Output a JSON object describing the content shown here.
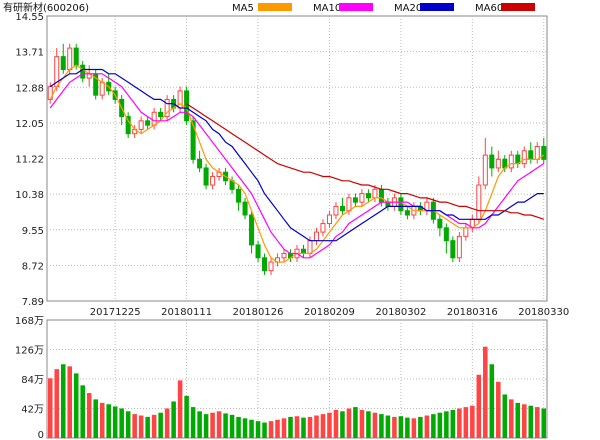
{
  "header": {
    "title": "有研新材(600206)",
    "legend": [
      {
        "name": "MA5",
        "color": "#ff9900"
      },
      {
        "name": "MA10",
        "color": "#ff00ff"
      },
      {
        "name": "MA20",
        "color": "#0000cc"
      },
      {
        "name": "MA60",
        "color": "#cc0000"
      }
    ]
  },
  "chart_data": [
    {
      "type": "candlestick",
      "title": "有研新材(600206)",
      "ylim": [
        7.89,
        14.55
      ],
      "yticks": [
        "14.55",
        "13.71",
        "12.88",
        "12.05",
        "11.22",
        "10.38",
        "9.55",
        "8.72",
        "7.89"
      ],
      "xticks": [
        "20171225",
        "20180111",
        "20180126",
        "20180209",
        "20180302",
        "20180316",
        "20180330"
      ],
      "xtick_index": [
        10,
        21,
        32,
        43,
        54,
        65,
        76
      ],
      "grid": true,
      "legend_placement": "top",
      "colors": {
        "up": "#ff4444",
        "down": "#00aa00"
      },
      "series": [
        {
          "name": "MA5",
          "color": "#ff9900",
          "values": [
            12.6,
            12.9,
            13.1,
            13.3,
            13.4,
            13.3,
            13.2,
            13.1,
            13.0,
            12.9,
            12.7,
            12.4,
            12.1,
            11.9,
            11.8,
            11.9,
            12.0,
            12.1,
            12.3,
            12.4,
            12.5,
            12.4,
            12.0,
            11.6,
            11.2,
            11.0,
            10.9,
            10.8,
            10.7,
            10.6,
            10.4,
            10.0,
            9.6,
            9.2,
            8.9,
            8.8,
            8.8,
            8.9,
            9.0,
            9.0,
            9.0,
            9.1,
            9.3,
            9.5,
            9.7,
            9.9,
            10.0,
            10.1,
            10.1,
            10.2,
            10.3,
            10.3,
            10.2,
            10.2,
            10.2,
            10.1,
            10.0,
            10.0,
            10.0,
            10.0,
            9.9,
            9.8,
            9.7,
            9.6,
            9.6,
            9.6,
            9.7,
            10.0,
            10.4,
            10.8,
            11.0,
            11.1,
            11.1,
            11.2,
            11.2,
            11.2,
            11.3
          ]
        },
        {
          "name": "MA10",
          "color": "#ff00ff",
          "values": [
            12.4,
            12.6,
            12.8,
            13.0,
            13.1,
            13.2,
            13.2,
            13.2,
            13.2,
            13.1,
            13.0,
            12.9,
            12.7,
            12.5,
            12.3,
            12.2,
            12.1,
            12.1,
            12.1,
            12.2,
            12.3,
            12.3,
            12.2,
            12.0,
            11.8,
            11.6,
            11.4,
            11.2,
            11.0,
            10.8,
            10.6,
            10.4,
            10.1,
            9.8,
            9.5,
            9.3,
            9.1,
            9.0,
            9.0,
            8.9,
            8.9,
            9.0,
            9.1,
            9.2,
            9.4,
            9.5,
            9.7,
            9.8,
            9.9,
            10.0,
            10.1,
            10.2,
            10.2,
            10.2,
            10.2,
            10.2,
            10.1,
            10.1,
            10.0,
            10.0,
            10.0,
            9.9,
            9.8,
            9.7,
            9.7,
            9.6,
            9.6,
            9.7,
            9.9,
            10.1,
            10.3,
            10.5,
            10.7,
            10.8,
            10.9,
            11.0,
            11.1
          ]
        },
        {
          "name": "MA20",
          "color": "#0000cc",
          "values": [
            12.9,
            13.0,
            13.1,
            13.2,
            13.2,
            13.3,
            13.3,
            13.3,
            13.3,
            13.2,
            13.2,
            13.1,
            13.0,
            12.9,
            12.8,
            12.7,
            12.6,
            12.6,
            12.5,
            12.5,
            12.4,
            12.4,
            12.3,
            12.2,
            12.1,
            11.9,
            11.8,
            11.6,
            11.5,
            11.3,
            11.1,
            10.9,
            10.7,
            10.4,
            10.2,
            10.0,
            9.8,
            9.6,
            9.5,
            9.4,
            9.3,
            9.3,
            9.3,
            9.3,
            9.3,
            9.4,
            9.5,
            9.6,
            9.7,
            9.8,
            9.9,
            10.0,
            10.1,
            10.1,
            10.1,
            10.1,
            10.1,
            10.1,
            10.0,
            10.0,
            10.0,
            9.9,
            9.9,
            9.8,
            9.8,
            9.8,
            9.8,
            9.8,
            9.9,
            9.9,
            10.0,
            10.1,
            10.2,
            10.2,
            10.3,
            10.4,
            10.4
          ]
        },
        {
          "name": "MA60",
          "color": "#cc0000",
          "values": [
            null,
            null,
            null,
            null,
            null,
            null,
            null,
            null,
            null,
            null,
            null,
            null,
            null,
            null,
            null,
            null,
            null,
            null,
            null,
            null,
            null,
            12.5,
            12.4,
            12.3,
            12.2,
            12.1,
            12.0,
            11.9,
            11.8,
            11.7,
            11.6,
            11.5,
            11.4,
            11.3,
            11.2,
            11.1,
            11.05,
            11.0,
            10.95,
            10.9,
            10.9,
            10.85,
            10.8,
            10.8,
            10.75,
            10.7,
            10.7,
            10.65,
            10.6,
            10.6,
            10.55,
            10.5,
            10.5,
            10.45,
            10.4,
            10.4,
            10.35,
            10.3,
            10.3,
            10.25,
            10.2,
            10.2,
            10.15,
            10.1,
            10.1,
            10.05,
            10.0,
            10.0,
            10.0,
            10.0,
            10.0,
            9.95,
            9.95,
            9.9,
            9.9,
            9.85,
            9.8
          ]
        }
      ],
      "candles": [
        [
          12.6,
          12.9,
          12.5,
          13.0
        ],
        [
          12.9,
          13.6,
          12.8,
          13.8
        ],
        [
          13.6,
          13.3,
          13.2,
          13.9
        ],
        [
          13.3,
          13.8,
          13.2,
          13.9
        ],
        [
          13.8,
          13.4,
          13.3,
          13.9
        ],
        [
          13.4,
          13.1,
          13.0,
          13.5
        ],
        [
          13.1,
          13.2,
          12.9,
          13.4
        ],
        [
          13.2,
          12.7,
          12.6,
          13.3
        ],
        [
          12.7,
          13.0,
          12.6,
          13.1
        ],
        [
          13.0,
          12.8,
          12.7,
          13.2
        ],
        [
          12.8,
          12.6,
          12.5,
          12.9
        ],
        [
          12.6,
          12.2,
          12.0,
          12.7
        ],
        [
          12.2,
          11.8,
          11.7,
          12.3
        ],
        [
          11.8,
          11.9,
          11.7,
          12.0
        ],
        [
          11.9,
          12.1,
          11.8,
          12.2
        ],
        [
          12.1,
          12.0,
          11.9,
          12.2
        ],
        [
          12.0,
          12.3,
          11.9,
          12.4
        ],
        [
          12.3,
          12.2,
          12.1,
          12.4
        ],
        [
          12.2,
          12.6,
          12.1,
          12.7
        ],
        [
          12.6,
          12.4,
          12.3,
          12.7
        ],
        [
          12.4,
          12.8,
          12.3,
          12.9
        ],
        [
          12.8,
          12.1,
          12.0,
          12.9
        ],
        [
          12.1,
          11.2,
          11.1,
          12.2
        ],
        [
          11.2,
          11.0,
          10.9,
          11.4
        ],
        [
          11.0,
          10.6,
          10.5,
          11.1
        ],
        [
          10.6,
          10.8,
          10.5,
          10.9
        ],
        [
          10.8,
          10.9,
          10.7,
          11.0
        ],
        [
          10.9,
          10.7,
          10.6,
          11.0
        ],
        [
          10.7,
          10.5,
          10.4,
          10.8
        ],
        [
          10.5,
          10.2,
          10.0,
          10.6
        ],
        [
          10.2,
          9.9,
          9.8,
          10.3
        ],
        [
          9.9,
          9.2,
          9.0,
          10.0
        ],
        [
          9.2,
          8.9,
          8.8,
          9.3
        ],
        [
          8.9,
          8.6,
          8.5,
          9.0
        ],
        [
          8.6,
          8.8,
          8.5,
          8.9
        ],
        [
          8.8,
          8.9,
          8.7,
          9.0
        ],
        [
          8.9,
          9.0,
          8.8,
          9.1
        ],
        [
          9.0,
          8.9,
          8.8,
          9.1
        ],
        [
          8.9,
          9.1,
          8.8,
          9.2
        ],
        [
          9.1,
          9.0,
          8.9,
          9.2
        ],
        [
          9.0,
          9.3,
          8.9,
          9.4
        ],
        [
          9.3,
          9.5,
          9.2,
          9.6
        ],
        [
          9.5,
          9.7,
          9.4,
          9.8
        ],
        [
          9.7,
          9.9,
          9.6,
          10.0
        ],
        [
          9.9,
          10.1,
          9.8,
          10.2
        ],
        [
          10.1,
          10.0,
          9.9,
          10.3
        ],
        [
          10.0,
          10.3,
          9.9,
          10.4
        ],
        [
          10.3,
          10.2,
          10.1,
          10.4
        ],
        [
          10.2,
          10.4,
          10.1,
          10.5
        ],
        [
          10.4,
          10.3,
          10.2,
          10.5
        ],
        [
          10.3,
          10.5,
          10.2,
          10.6
        ],
        [
          10.5,
          10.2,
          10.1,
          10.6
        ],
        [
          10.2,
          10.1,
          10.0,
          10.3
        ],
        [
          10.1,
          10.3,
          10.0,
          10.4
        ],
        [
          10.3,
          10.0,
          9.9,
          10.4
        ],
        [
          10.0,
          9.9,
          9.8,
          10.1
        ],
        [
          9.9,
          10.1,
          9.8,
          10.2
        ],
        [
          10.1,
          10.0,
          9.9,
          10.2
        ],
        [
          10.0,
          10.2,
          9.9,
          10.3
        ],
        [
          10.2,
          9.8,
          9.7,
          10.3
        ],
        [
          9.8,
          9.6,
          9.4,
          9.9
        ],
        [
          9.6,
          9.3,
          9.0,
          9.7
        ],
        [
          9.3,
          8.9,
          8.8,
          9.4
        ],
        [
          8.9,
          9.4,
          8.8,
          9.5
        ],
        [
          9.4,
          9.6,
          9.3,
          9.7
        ],
        [
          9.6,
          9.8,
          9.5,
          9.9
        ],
        [
          9.8,
          10.6,
          9.7,
          10.8
        ],
        [
          10.6,
          11.3,
          10.5,
          11.7
        ],
        [
          11.3,
          11.0,
          10.8,
          11.5
        ],
        [
          11.0,
          11.2,
          10.9,
          11.4
        ],
        [
          11.2,
          11.0,
          10.9,
          11.3
        ],
        [
          11.0,
          11.3,
          10.9,
          11.4
        ],
        [
          11.3,
          11.1,
          11.0,
          11.4
        ],
        [
          11.1,
          11.4,
          11.0,
          11.5
        ],
        [
          11.4,
          11.2,
          11.1,
          11.6
        ],
        [
          11.2,
          11.5,
          11.1,
          11.6
        ],
        [
          11.5,
          11.2,
          11.1,
          11.7
        ]
      ]
    },
    {
      "type": "bar",
      "title": "",
      "ylim": [
        0,
        168
      ],
      "yticks": [
        "168万",
        "126万",
        "84万",
        "42万",
        "0"
      ],
      "unit": "万",
      "values": [
        85,
        98,
        105,
        102,
        92,
        75,
        64,
        55,
        50,
        48,
        45,
        42,
        38,
        34,
        32,
        30,
        33,
        36,
        42,
        52,
        82,
        60,
        44,
        38,
        34,
        36,
        38,
        35,
        33,
        30,
        28,
        26,
        24,
        22,
        24,
        26,
        28,
        30,
        31,
        29,
        30,
        32,
        34,
        36,
        40,
        38,
        42,
        44,
        40,
        38,
        36,
        34,
        32,
        30,
        31,
        29,
        28,
        30,
        32,
        34,
        36,
        38,
        40,
        42,
        44,
        46,
        90,
        130,
        105,
        80,
        62,
        55,
        50,
        48,
        46,
        44,
        42
      ]
    }
  ]
}
